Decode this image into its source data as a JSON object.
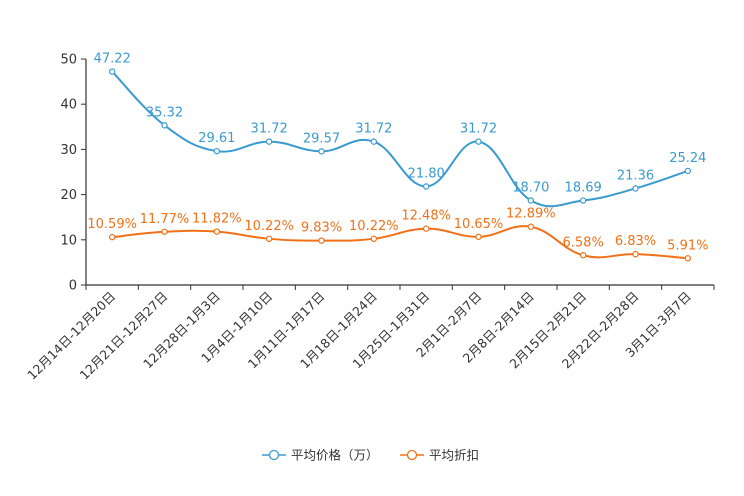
{
  "chart_data": {
    "type": "line",
    "title": "",
    "xlabel": "",
    "ylabel": "",
    "ylim": [
      0,
      50
    ],
    "yticks": [
      0,
      10,
      20,
      30,
      40,
      50
    ],
    "grid": false,
    "legend_position": "bottom",
    "categories": [
      "12月14日-12月20日",
      "12月21日-12月27日",
      "12月28日-1月3日",
      "1月4日-1月10日",
      "1月11日-1月17日",
      "1月18日-1月24日",
      "1月25日-1月31日",
      "2月1日-2月7日",
      "2月8日-2月14日",
      "2月15日-2月21日",
      "2月22日-2月28日",
      "3月1日-3月7日"
    ],
    "series": [
      {
        "name": "平均价格（万）",
        "color": "#3a9bd0",
        "values": [
          47.22,
          35.32,
          29.61,
          31.72,
          29.57,
          31.72,
          21.8,
          31.72,
          18.7,
          18.69,
          21.36,
          25.24
        ],
        "labels": [
          "47.22",
          "35.32",
          "29.61",
          "31.72",
          "29.57",
          "31.72",
          "21.80",
          "31.72",
          "18.70",
          "18.69",
          "21.36",
          "25.24"
        ]
      },
      {
        "name": "平均折扣",
        "color": "#f07118",
        "values": [
          10.59,
          11.77,
          11.82,
          10.22,
          9.83,
          10.22,
          12.48,
          10.65,
          12.89,
          6.58,
          6.83,
          5.91
        ],
        "labels": [
          "10.59%",
          "11.77%",
          "11.82%",
          "10.22%",
          "9.83%",
          "10.22%",
          "12.48%",
          "10.65%",
          "12.89%",
          "6.58%",
          "6.83%",
          "5.91%"
        ]
      }
    ]
  }
}
